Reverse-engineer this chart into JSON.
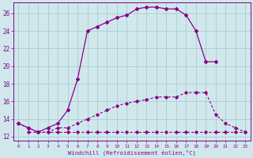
{
  "xlabel": "Windchill (Refroidissement éolien,°C)",
  "background_color": "#d0e8ec",
  "grid_color": "#aaccd2",
  "line_color": "#880088",
  "xlim": [
    -0.5,
    23.5
  ],
  "ylim": [
    11.5,
    27.2
  ],
  "yticks": [
    12,
    14,
    16,
    18,
    20,
    22,
    24,
    26
  ],
  "xticks": [
    0,
    1,
    2,
    3,
    4,
    5,
    6,
    7,
    8,
    9,
    10,
    11,
    12,
    13,
    14,
    15,
    16,
    17,
    18,
    19,
    20,
    21,
    22,
    23
  ],
  "line1_x": [
    0,
    1,
    2,
    3,
    4,
    5,
    6,
    7,
    8,
    9,
    10,
    11,
    12,
    13,
    14,
    15,
    16,
    17,
    18,
    19,
    20
  ],
  "line1_y": [
    13.5,
    13.0,
    12.5,
    13.0,
    13.5,
    15.0,
    18.5,
    24.0,
    24.5,
    25.0,
    25.5,
    25.8,
    26.5,
    26.7,
    26.7,
    26.5,
    26.5,
    25.8,
    24.0,
    20.5,
    20.5
  ],
  "line2_x": [
    0,
    1,
    2,
    3,
    4,
    5,
    6,
    7,
    8,
    9,
    10,
    11,
    12,
    13,
    14,
    15,
    16,
    17,
    18,
    19,
    20,
    21,
    22,
    23
  ],
  "line2_y": [
    13.5,
    13.0,
    12.5,
    12.5,
    13.0,
    13.0,
    13.5,
    14.0,
    14.5,
    15.0,
    15.5,
    15.8,
    16.0,
    16.2,
    16.5,
    16.5,
    16.5,
    17.0,
    17.0,
    17.0,
    14.5,
    13.5,
    13.0,
    12.5
  ],
  "line3_x": [
    1,
    2,
    3,
    4,
    5,
    6,
    7,
    8,
    9,
    10,
    11,
    12,
    13,
    14,
    15,
    16,
    17,
    18,
    19,
    20,
    21,
    22,
    23
  ],
  "line3_y": [
    12.5,
    12.5,
    12.5,
    12.5,
    12.5,
    12.5,
    12.5,
    12.5,
    12.5,
    12.5,
    12.5,
    12.5,
    12.5,
    12.5,
    12.5,
    12.5,
    12.5,
    12.5,
    12.5,
    12.5,
    12.5,
    12.5,
    12.5
  ]
}
